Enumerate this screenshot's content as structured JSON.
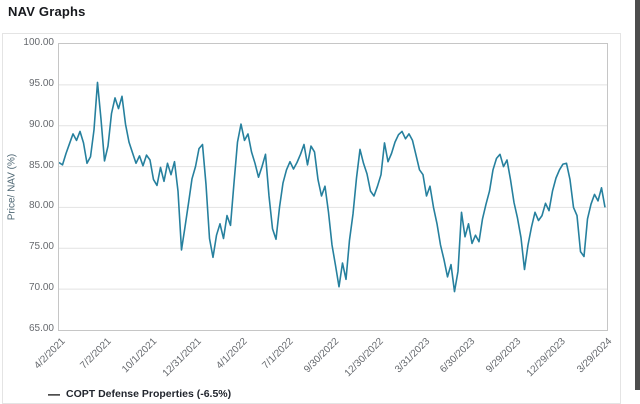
{
  "page": {
    "title": "NAV Graphs"
  },
  "legend": {
    "dash": "—",
    "label": "COPT Defense Properties (-6.5%)"
  },
  "colors": {
    "line": "#26809e",
    "grid": "#e2e2e2",
    "plot_border": "#c6c6c6",
    "card_border": "#e4e4e4",
    "tick_text": "#66696e",
    "axis_title_text": "#4d6673",
    "title_text": "#16181d",
    "legend_text": "#22262e",
    "scrollbar": "#4d4d4d"
  },
  "chart_data": {
    "type": "line",
    "title": "NAV Graphs",
    "xlabel": "",
    "ylabel": "Price/ NAV (%)",
    "ylim": [
      65,
      100
    ],
    "grid": "horizontal",
    "legend_position": "bottom-left",
    "x_unit": "weekly, 4/2/2021 to 3/29/2024 (157 points)",
    "y_ticks": [
      100,
      95,
      90,
      85,
      80,
      75,
      70,
      65
    ],
    "y_tick_labels": [
      "100.00",
      "95.00",
      "90.00",
      "85.00",
      "80.00",
      "75.00",
      "70.00",
      "65.00"
    ],
    "x_tick_labels": [
      "4/2/2021",
      "7/2/2021",
      "10/1/2021",
      "12/31/2021",
      "4/1/2022",
      "7/1/2022",
      "9/30/2022",
      "12/30/2022",
      "3/31/2023",
      "6/30/2023",
      "9/29/2023",
      "12/29/2023",
      "3/29/2024"
    ],
    "x_tick_weeks": [
      0,
      13,
      26,
      39,
      52,
      65,
      78,
      91,
      104,
      117,
      130,
      143,
      156
    ],
    "series": [
      {
        "name": "COPT Defense Properties (-6.5%)",
        "values": [
          85.5,
          85.2,
          86.6,
          87.8,
          89.0,
          88.2,
          89.3,
          87.9,
          85.4,
          86.2,
          89.5,
          95.3,
          90.8,
          85.7,
          87.5,
          91.5,
          93.4,
          92.1,
          93.6,
          90.2,
          88.0,
          86.7,
          85.4,
          86.3,
          85.1,
          86.4,
          85.8,
          83.4,
          82.7,
          84.9,
          83.2,
          85.4,
          84.0,
          85.6,
          82.0,
          74.8,
          77.6,
          80.5,
          83.5,
          85.0,
          87.2,
          87.7,
          82.8,
          76.2,
          73.9,
          76.6,
          78.0,
          76.2,
          79.0,
          77.8,
          83.0,
          88.0,
          90.2,
          88.2,
          89.0,
          86.8,
          85.4,
          83.7,
          85.0,
          86.5,
          81.4,
          77.4,
          76.1,
          80.0,
          83.0,
          84.6,
          85.6,
          84.7,
          85.5,
          86.5,
          87.7,
          85.2,
          87.5,
          86.8,
          83.4,
          81.4,
          82.6,
          79.4,
          75.4,
          72.9,
          70.3,
          73.2,
          71.2,
          76.0,
          79.2,
          83.6,
          87.1,
          85.4,
          84.1,
          82.0,
          81.4,
          82.6,
          84.0,
          87.9,
          85.6,
          86.6,
          88.0,
          88.9,
          89.3,
          88.4,
          89.0,
          88.2,
          86.4,
          84.6,
          84.0,
          81.4,
          82.6,
          80.0,
          78.0,
          75.4,
          73.6,
          71.5,
          73.0,
          69.7,
          72.2,
          79.4,
          76.4,
          78.0,
          75.6,
          76.6,
          75.8,
          78.6,
          80.4,
          82.0,
          84.6,
          86.0,
          86.5,
          85.0,
          85.8,
          83.4,
          80.6,
          78.7,
          76.3,
          72.4,
          75.4,
          77.6,
          79.4,
          78.4,
          79.0,
          80.5,
          79.6,
          82.0,
          83.6,
          84.6,
          85.3,
          85.4,
          83.4,
          80.0,
          79.0,
          74.6,
          74.0,
          78.6,
          80.4,
          81.6,
          80.8,
          82.4,
          80.0
        ]
      }
    ]
  }
}
